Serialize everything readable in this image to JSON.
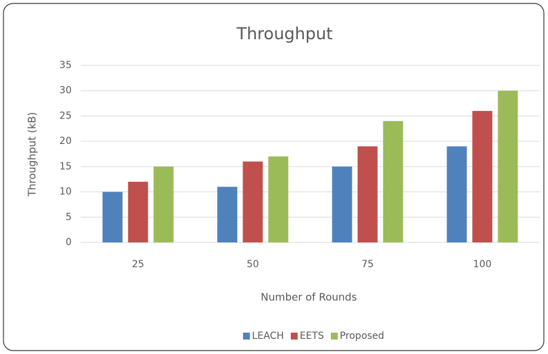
{
  "chart_data": {
    "type": "bar",
    "title": "Throughput",
    "x_label": "Number of Rounds",
    "y_label": "Throughput (kB)",
    "categories": [
      "25",
      "50",
      "75",
      "100"
    ],
    "series": [
      {
        "name": "LEACH",
        "color": "#4f81bd",
        "values": [
          10,
          11,
          15,
          19
        ]
      },
      {
        "name": "EETS",
        "color": "#c0504d",
        "values": [
          12,
          16,
          19,
          26
        ]
      },
      {
        "name": "Proposed",
        "color": "#9bbb59",
        "values": [
          15,
          17,
          24,
          30
        ]
      }
    ],
    "ylim": [
      0,
      35
    ],
    "yticks": [
      0,
      5,
      10,
      15,
      20,
      25,
      30,
      35
    ],
    "grid": true,
    "legend": "bottom"
  }
}
